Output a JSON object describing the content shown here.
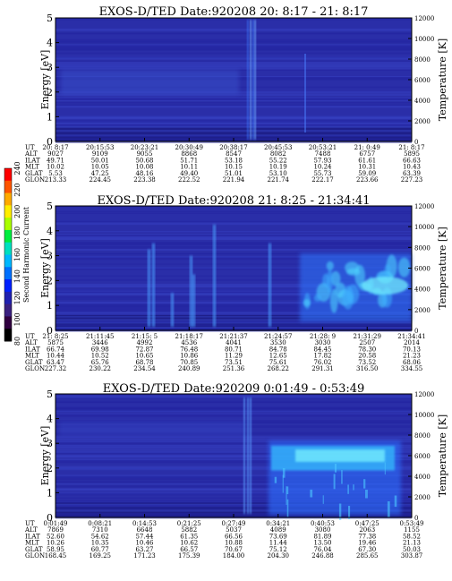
{
  "colorbar": {
    "label": "Second Harmonic Current",
    "ticks": [
      "240",
      "220",
      "200",
      "180",
      "160",
      "140",
      "120",
      "100",
      "80"
    ]
  },
  "row_labels": [
    "UT",
    "ALT",
    "ILAT",
    "MLT",
    "GLAT",
    "GLON"
  ],
  "chart_data": [
    {
      "type": "heatmap",
      "title": "EXOS-D/TED   Date:920208  20: 8:17 - 21: 8:17",
      "ylabel": "Energy [eV]",
      "y2label": "Temperature [K]",
      "ylim": [
        0,
        5
      ],
      "y2lim": [
        0,
        12000
      ],
      "yticks": [
        "0",
        "1",
        "2",
        "3",
        "4",
        "5"
      ],
      "y2ticks": [
        "0",
        "2000",
        "4000",
        "6000",
        "8000",
        "10000",
        "12000"
      ],
      "ut": [
        "20: 8:17",
        "20:15:53",
        "20:23:21",
        "20:30:49",
        "20:38:17",
        "20:45:53",
        "20:53:21",
        "21: 0:49",
        "21: 8:17"
      ],
      "alt": [
        "9027",
        "9109",
        "9055",
        "8868",
        "8547",
        "8082",
        "7488",
        "6757",
        "5895"
      ],
      "ilat": [
        "49.71",
        "50.01",
        "50.68",
        "51.71",
        "53.18",
        "55.22",
        "57.93",
        "61.61",
        "66.63"
      ],
      "mlt": [
        "10.02",
        "10.05",
        "10.08",
        "10.11",
        "10.15",
        "10.19",
        "10.24",
        "10.31",
        "10.43"
      ],
      "glat": [
        "5.53",
        "47.25",
        "48.16",
        "49.40",
        "51.01",
        "53.10",
        "55.73",
        "59.09",
        "63.39"
      ],
      "glon": [
        "213.33",
        "224.45",
        "223.38",
        "222.52",
        "221.94",
        "221.74",
        "222.17",
        "223.66",
        "227.23"
      ]
    },
    {
      "type": "heatmap",
      "title": "EXOS-D/TED   Date:920208  21: 8:25 - 21:34:41",
      "ylabel": "Energy [eV]",
      "y2label": "Temperature [K]",
      "ylim": [
        0,
        5
      ],
      "y2lim": [
        0,
        12000
      ],
      "yticks": [
        "0",
        "1",
        "2",
        "3",
        "4",
        "5"
      ],
      "y2ticks": [
        "0",
        "2000",
        "4000",
        "6000",
        "8000",
        "10000",
        "12000"
      ],
      "ut": [
        "21: 8:25",
        "21:11:45",
        "21:15: 5",
        "21:18:17",
        "21:21:37",
        "21:24:57",
        "21:28: 9",
        "21:31:29",
        "21:34:41"
      ],
      "alt": [
        "5875",
        "3446",
        "4992",
        "4536",
        "4041",
        "3530",
        "3030",
        "2507",
        "2014"
      ],
      "ilat": [
        "66.74",
        "69.98",
        "72.87",
        "76.48",
        "80.71",
        "84.78",
        "84.45",
        "78.30",
        "70.13"
      ],
      "mlt": [
        "10.44",
        "10.52",
        "10.65",
        "10.86",
        "11.29",
        "12.65",
        "17.82",
        "20.58",
        "21.23"
      ],
      "glat": [
        "63.47",
        "65.76",
        "68.78",
        "70.85",
        "73.51",
        "75.61",
        "76.02",
        "73.52",
        "68.06"
      ],
      "glon": [
        "227.32",
        "230.22",
        "234.54",
        "240.89",
        "251.36",
        "268.22",
        "291.31",
        "316.50",
        "334.55"
      ]
    },
    {
      "type": "heatmap",
      "title": "EXOS-D/TED   Date:920209  0:01:49 - 0:53:49",
      "ylabel": "Energy [eV]",
      "y2label": "Temperature [K]",
      "ylim": [
        0,
        5
      ],
      "y2lim": [
        0,
        12000
      ],
      "yticks": [
        "0",
        "1",
        "2",
        "3",
        "4",
        "5"
      ],
      "y2ticks": [
        "0",
        "2000",
        "4000",
        "6000",
        "8000",
        "10000",
        "12000"
      ],
      "ut": [
        "0:01:49",
        "0:08:21",
        "0:14:53",
        "0:21:25",
        "0:27:49",
        "0:34:21",
        "0:40:53",
        "0:47:25",
        "0:53:49"
      ],
      "alt": [
        "7869",
        "7310",
        "6648",
        "5882",
        "5037",
        "4089",
        "3080",
        "2063",
        "1155"
      ],
      "ilat": [
        "52.60",
        "54.62",
        "57.44",
        "61.35",
        "66.56",
        "73.69",
        "81.89",
        "77.38",
        "58.52"
      ],
      "mlt": [
        "10.26",
        "10.35",
        "10.46",
        "10.62",
        "10.88",
        "11.44",
        "13.50",
        "19.46",
        "21.13"
      ],
      "glat": [
        "58.95",
        "60.77",
        "63.27",
        "66.57",
        "70.67",
        "75.12",
        "76.04",
        "67.30",
        "50.03"
      ],
      "glon": [
        "168.45",
        "169.25",
        "171.23",
        "175.39",
        "184.00",
        "204.30",
        "246.88",
        "285.65",
        "303.87"
      ]
    }
  ]
}
